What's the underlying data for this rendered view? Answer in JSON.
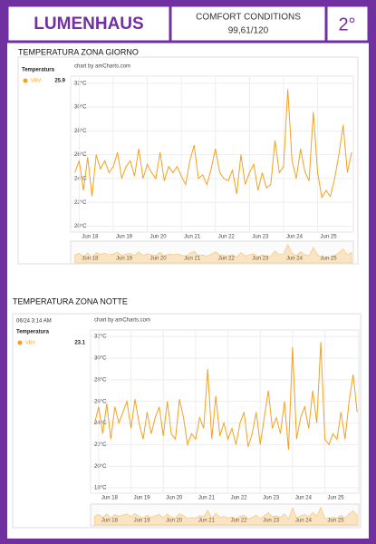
{
  "header": {
    "brand": "LUMENHAUS",
    "comfort_title": "COMFORT CONDITIONS",
    "comfort_value": "99,61/120",
    "temperature": "2°"
  },
  "chart_data": [
    {
      "type": "line",
      "title": "TEMPERATURA ZONA GIORNO",
      "credit": "chart by amCharts.com",
      "legend_title": "Temperatura",
      "legend_value": "25.9",
      "ylim": [
        19.5,
        32.6
      ],
      "yticks": [
        {
          "value": 20,
          "label": "20°C"
        },
        {
          "value": 22,
          "label": "22°C"
        },
        {
          "value": 24,
          "label": "24°C"
        },
        {
          "value": 26,
          "label": "26°C"
        },
        {
          "value": 28,
          "label": "28°C"
        },
        {
          "value": 30,
          "label": "30°C"
        },
        {
          "value": 32,
          "label": "32°C"
        }
      ],
      "xlim": [
        17.75,
        26.05
      ],
      "xticks": [
        {
          "value": 18,
          "label": "Jun 18"
        },
        {
          "value": 19,
          "label": "Jun 19"
        },
        {
          "value": 20,
          "label": "Jun 20"
        },
        {
          "value": 21,
          "label": "Jun 21"
        },
        {
          "value": 22,
          "label": "Jun 22"
        },
        {
          "value": 23,
          "label": "Jun 23"
        },
        {
          "value": 24,
          "label": "Jun 24"
        },
        {
          "value": 25,
          "label": "Jun 25"
        }
      ],
      "x": [
        17.875,
        18,
        18.125,
        18.25,
        18.375,
        18.5,
        18.625,
        18.75,
        18.875,
        19,
        19.125,
        19.25,
        19.375,
        19.5,
        19.625,
        19.75,
        19.875,
        20,
        20.125,
        20.25,
        20.375,
        20.5,
        20.625,
        20.75,
        20.875,
        21,
        21.125,
        21.25,
        21.375,
        21.5,
        21.625,
        21.75,
        21.875,
        22,
        22.125,
        22.25,
        22.375,
        22.5,
        22.625,
        22.75,
        22.875,
        23,
        23.125,
        23.25,
        23.375,
        23.5,
        23.625,
        23.75,
        23.875,
        24,
        24.125,
        24.25,
        24.375,
        24.5,
        24.625,
        24.75,
        24.875,
        25,
        25.125,
        25.25,
        25.375,
        25.5,
        25.625,
        25.75,
        25.875,
        26
      ],
      "series": [
        {
          "name": "VRV",
          "color": "#f5a020",
          "values": [
            24.5,
            25.5,
            23,
            25.8,
            22.5,
            26,
            24.8,
            25.5,
            24.5,
            25,
            26.2,
            24,
            25,
            25.5,
            24.2,
            26.5,
            24,
            25.2,
            24.5,
            24,
            26.2,
            23.8,
            25,
            24.5,
            25,
            24.2,
            23.5,
            25.5,
            26.8,
            24,
            24.3,
            23.5,
            24.8,
            26.5,
            24.5,
            24,
            23.8,
            24.7,
            22.7,
            26,
            23.5,
            24.5,
            25.2,
            23,
            24.5,
            23.2,
            23.5,
            27.2,
            24.5,
            25,
            31.5,
            25.5,
            24,
            26.5,
            24.6,
            23.8,
            29.6,
            24.5,
            22.4,
            23,
            22.5,
            24,
            26,
            28.5,
            24.5,
            26.2
          ]
        }
      ],
      "grid": true
    },
    {
      "type": "line",
      "title": "TEMPERATURA ZONA NOTTE",
      "timestamp": "06/24 3:14 AM",
      "credit": "chart by amCharts.com",
      "legend_title": "Temperatura",
      "legend_value": "23.1",
      "ylim": [
        17.5,
        32.6
      ],
      "yticks": [
        {
          "value": 18,
          "label": "18°C"
        },
        {
          "value": 20,
          "label": "20°C"
        },
        {
          "value": 22,
          "label": "22°C"
        },
        {
          "value": 24,
          "label": "24°C"
        },
        {
          "value": 26,
          "label": "26°C"
        },
        {
          "value": 28,
          "label": "28°C"
        },
        {
          "value": 30,
          "label": "30°C"
        },
        {
          "value": 32,
          "label": "32°C"
        }
      ],
      "xlim": [
        17.75,
        26.05
      ],
      "xticks": [
        {
          "value": 18,
          "label": "Jun 18"
        },
        {
          "value": 19,
          "label": "Jun 19"
        },
        {
          "value": 20,
          "label": "Jun 20"
        },
        {
          "value": 21,
          "label": "Jun 21"
        },
        {
          "value": 22,
          "label": "Jun 22"
        },
        {
          "value": 23,
          "label": "Jun 23"
        },
        {
          "value": 24,
          "label": "Jun 24"
        },
        {
          "value": 25,
          "label": "Jun 25"
        }
      ],
      "x": [
        17.875,
        18,
        18.125,
        18.25,
        18.375,
        18.5,
        18.625,
        18.75,
        18.875,
        19,
        19.125,
        19.25,
        19.375,
        19.5,
        19.625,
        19.75,
        19.875,
        20,
        20.125,
        20.25,
        20.375,
        20.5,
        20.625,
        20.75,
        20.875,
        21,
        21.125,
        21.25,
        21.375,
        21.5,
        21.625,
        21.75,
        21.875,
        22,
        22.125,
        22.25,
        22.375,
        22.5,
        22.625,
        22.75,
        22.875,
        23,
        23.125,
        23.25,
        23.375,
        23.5,
        23.625,
        23.75,
        23.875,
        24,
        24.125,
        24.25,
        24.375,
        24.5,
        24.625,
        24.75,
        24.875,
        25,
        25.125,
        25.25,
        25.375,
        25.5,
        25.625,
        25.75,
        25.875,
        26
      ],
      "series": [
        {
          "name": "VRV",
          "color": "#f5a020",
          "values": [
            24,
            25.5,
            23,
            25.8,
            22.5,
            25.5,
            24,
            25,
            26,
            23.5,
            26.2,
            24,
            22.5,
            25,
            23,
            24.5,
            25.5,
            22.8,
            26,
            23,
            22.5,
            26.2,
            24.5,
            22,
            23,
            22.5,
            24.5,
            23.5,
            29,
            22.5,
            26.5,
            22.8,
            24,
            22.5,
            23.5,
            22,
            24,
            25,
            21.8,
            23,
            25,
            22,
            24.5,
            27,
            23.5,
            24.5,
            23,
            26,
            21.5,
            31,
            22.5,
            24.5,
            25.5,
            23.5,
            27,
            24,
            31.5,
            22.5,
            22,
            23,
            22.5,
            25,
            22.5,
            26,
            28.5,
            25
          ]
        }
      ],
      "grid": true
    }
  ]
}
